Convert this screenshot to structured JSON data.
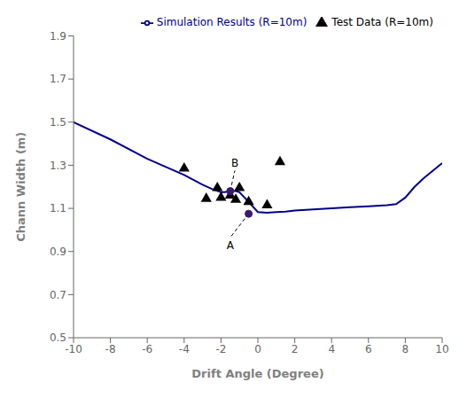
{
  "chart_data": {
    "type": "line",
    "xlabel": "Drift Angle (Degree)",
    "ylabel": "Chann Width (m)",
    "xlim": [
      -10,
      10
    ],
    "ylim": [
      0.5,
      1.9
    ],
    "xticks": [
      -10,
      -8,
      -6,
      -4,
      -2,
      0,
      2,
      4,
      6,
      8,
      10
    ],
    "yticks": [
      0.5,
      0.7,
      0.9,
      1.1,
      1.3,
      1.5,
      1.7,
      1.9
    ],
    "legend": "upper right",
    "series": [
      {
        "name": "Simulation Results (R=10m)",
        "type": "line",
        "color": "#00008B",
        "x": [
          -10,
          -8,
          -6,
          -4,
          -3,
          -2.5,
          -2.0,
          -1.8,
          -1.5,
          -1.2,
          -1.0,
          -0.5,
          0.0,
          0.5,
          1.0,
          1.5,
          2.0,
          3.0,
          4.0,
          5.0,
          6.0,
          7.0,
          7.5,
          8.0,
          8.5,
          9.0,
          9.5,
          10.0
        ],
        "values": [
          1.5,
          1.42,
          1.33,
          1.255,
          1.21,
          1.19,
          1.175,
          1.175,
          1.18,
          1.18,
          1.175,
          1.13,
          1.083,
          1.08,
          1.083,
          1.085,
          1.09,
          1.095,
          1.1,
          1.105,
          1.11,
          1.115,
          1.12,
          1.15,
          1.2,
          1.24,
          1.275,
          1.31
        ]
      },
      {
        "name": "Test Data (R=10m)",
        "type": "scatter",
        "marker": "triangle",
        "color": "#000000",
        "x": [
          -4.0,
          -2.8,
          -2.2,
          -2.0,
          -1.5,
          -1.2,
          -1.0,
          -0.5,
          0.5,
          1.2
        ],
        "values": [
          1.285,
          1.145,
          1.195,
          1.15,
          1.16,
          1.14,
          1.195,
          1.13,
          1.115,
          1.315
        ]
      }
    ],
    "annotations": [
      {
        "text": "B",
        "x": -1.5,
        "y": 1.18,
        "text_x": -1.25,
        "text_y": 1.275,
        "marker": "circle",
        "color": "#3B1A6E"
      },
      {
        "text": "A",
        "x": -0.5,
        "y": 1.075,
        "text_x": -1.5,
        "text_y": 0.965,
        "marker": "circle",
        "color": "#3B1A6E"
      }
    ]
  }
}
